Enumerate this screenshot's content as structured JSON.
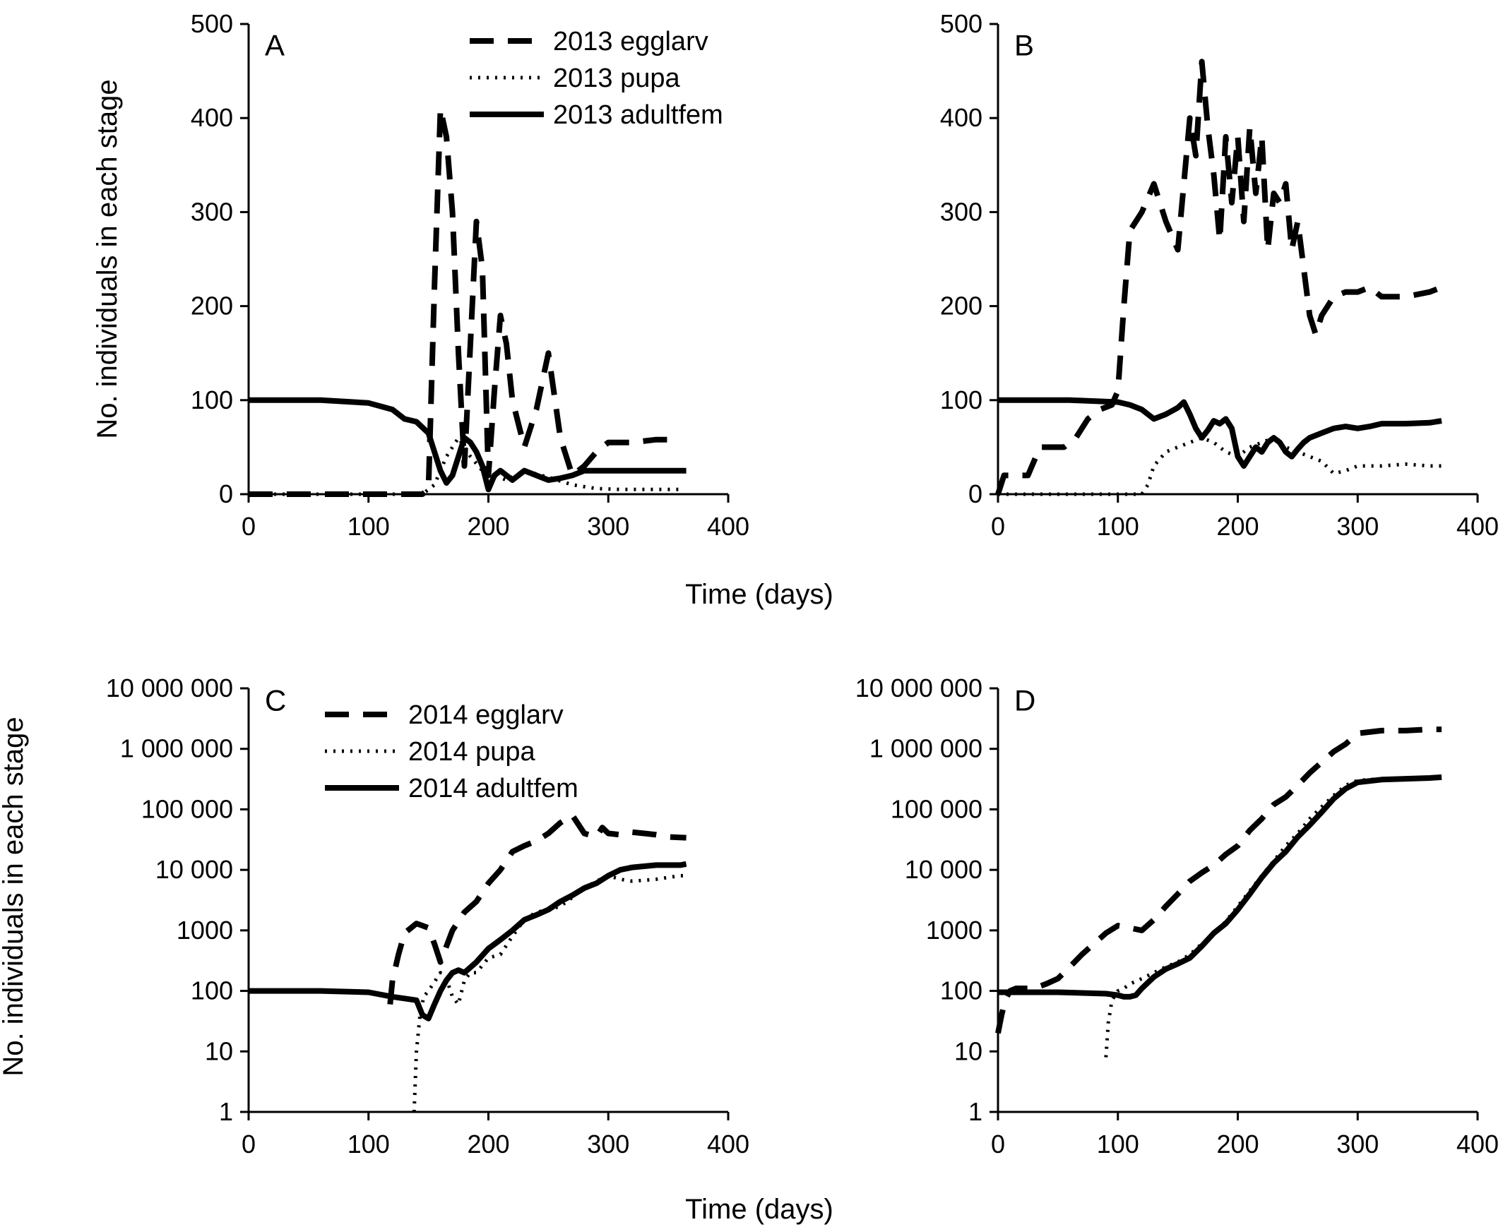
{
  "figure": {
    "xlabel_top": "Time (days)",
    "xlabel_bottom": "Time (days)",
    "ylabel_top": "No. individuals in each stage",
    "ylabel_bottom": "No. individuals in each stage"
  },
  "chart_data": [
    {
      "panel": "A",
      "type": "line",
      "xlim": [
        0,
        400
      ],
      "ylim": [
        0,
        500
      ],
      "xticks": [
        "0",
        "100",
        "200",
        "300",
        "400"
      ],
      "yticks": [
        "0",
        "100",
        "200",
        "300",
        "400",
        "500"
      ],
      "xtick_values": [
        0,
        100,
        200,
        300,
        400
      ],
      "ytick_values": [
        0,
        100,
        200,
        300,
        400,
        500
      ],
      "ylog": false,
      "legend": "top-center",
      "series": [
        {
          "name": "2013 egglarv",
          "style": "dashed",
          "x": [
            0,
            145,
            150,
            155,
            160,
            165,
            170,
            175,
            180,
            185,
            190,
            195,
            200,
            205,
            210,
            215,
            220,
            230,
            240,
            250,
            260,
            270,
            280,
            290,
            300,
            320,
            340,
            350,
            360
          ],
          "y": [
            0,
            0,
            5,
            220,
            410,
            380,
            300,
            150,
            30,
            160,
            290,
            240,
            20,
            110,
            190,
            160,
            100,
            50,
            90,
            150,
            60,
            20,
            30,
            45,
            55,
            55,
            58,
            58,
            60
          ]
        },
        {
          "name": "2013 pupa",
          "style": "dotted",
          "x": [
            0,
            145,
            155,
            165,
            175,
            185,
            195,
            205,
            215,
            230,
            250,
            270,
            290,
            310,
            330,
            350,
            360
          ],
          "y": [
            0,
            0,
            10,
            40,
            60,
            40,
            25,
            20,
            15,
            25,
            18,
            10,
            6,
            5,
            5,
            5,
            5
          ]
        },
        {
          "name": "2013 adultfem",
          "style": "solid",
          "x": [
            0,
            60,
            100,
            120,
            130,
            140,
            150,
            160,
            165,
            170,
            175,
            180,
            185,
            190,
            195,
            200,
            205,
            210,
            220,
            230,
            240,
            250,
            260,
            270,
            280,
            300,
            330,
            365
          ],
          "y": [
            100,
            100,
            97,
            90,
            80,
            77,
            65,
            25,
            12,
            20,
            40,
            60,
            55,
            45,
            30,
            5,
            20,
            25,
            15,
            25,
            20,
            15,
            17,
            20,
            25,
            25,
            25,
            25
          ]
        }
      ]
    },
    {
      "panel": "B",
      "type": "line",
      "xlim": [
        0,
        400
      ],
      "ylim": [
        0,
        500
      ],
      "xticks": [
        "0",
        "100",
        "200",
        "300",
        "400"
      ],
      "yticks": [
        "0",
        "100",
        "200",
        "300",
        "400",
        "500"
      ],
      "xtick_values": [
        0,
        100,
        200,
        300,
        400
      ],
      "ytick_values": [
        0,
        100,
        200,
        300,
        400,
        500
      ],
      "ylog": false,
      "series": [
        {
          "name": "2013 egglarv",
          "style": "dashed",
          "x": [
            0,
            5,
            25,
            35,
            45,
            55,
            65,
            75,
            85,
            95,
            100,
            105,
            110,
            115,
            120,
            130,
            140,
            150,
            155,
            160,
            165,
            170,
            175,
            180,
            185,
            190,
            195,
            200,
            205,
            210,
            215,
            220,
            225,
            230,
            235,
            240,
            245,
            250,
            255,
            260,
            265,
            270,
            275,
            280,
            290,
            300,
            310,
            320,
            340,
            360,
            370
          ],
          "y": [
            0,
            20,
            20,
            50,
            50,
            50,
            60,
            80,
            90,
            95,
            110,
            200,
            280,
            290,
            300,
            330,
            290,
            260,
            330,
            400,
            360,
            460,
            390,
            340,
            270,
            380,
            310,
            380,
            290,
            390,
            320,
            380,
            260,
            320,
            310,
            330,
            260,
            290,
            240,
            190,
            170,
            190,
            200,
            210,
            215,
            215,
            220,
            210,
            210,
            215,
            220
          ]
        },
        {
          "name": "2013 pupa",
          "style": "dotted",
          "x": [
            0,
            120,
            125,
            130,
            140,
            150,
            160,
            170,
            180,
            190,
            200,
            210,
            220,
            230,
            240,
            250,
            260,
            270,
            280,
            290,
            300,
            320,
            340,
            360,
            370
          ],
          "y": [
            0,
            0,
            10,
            30,
            45,
            50,
            55,
            60,
            55,
            45,
            40,
            50,
            55,
            60,
            50,
            45,
            40,
            35,
            22,
            25,
            30,
            30,
            32,
            30,
            30
          ]
        },
        {
          "name": "2013 adultfem",
          "style": "solid",
          "x": [
            0,
            60,
            100,
            110,
            120,
            130,
            140,
            150,
            155,
            160,
            165,
            170,
            175,
            180,
            185,
            190,
            195,
            200,
            205,
            210,
            215,
            220,
            225,
            230,
            235,
            240,
            245,
            250,
            255,
            260,
            270,
            280,
            290,
            300,
            310,
            320,
            340,
            360,
            370
          ],
          "y": [
            100,
            100,
            98,
            95,
            90,
            80,
            85,
            92,
            98,
            85,
            70,
            60,
            68,
            78,
            75,
            80,
            70,
            40,
            30,
            40,
            50,
            45,
            55,
            60,
            55,
            45,
            40,
            48,
            55,
            60,
            65,
            70,
            72,
            70,
            72,
            75,
            75,
            76,
            78
          ]
        }
      ]
    },
    {
      "panel": "C",
      "type": "line",
      "xlim": [
        0,
        400
      ],
      "ylim": [
        1,
        10000000
      ],
      "xticks": [
        "0",
        "100",
        "200",
        "300",
        "400"
      ],
      "yticks": [
        "1",
        "10",
        "100",
        "1000",
        "10 000",
        "100 000",
        "1 000 000",
        "10 000 000"
      ],
      "xtick_values": [
        0,
        100,
        200,
        300,
        400
      ],
      "ytick_values": [
        1,
        10,
        100,
        1000,
        10000,
        100000,
        1000000,
        10000000
      ],
      "ylog": true,
      "legend": "top-left",
      "series": [
        {
          "name": "2014 egglarv",
          "style": "dashed",
          "x": [
            118,
            120,
            125,
            130,
            140,
            145,
            150,
            155,
            160,
            170,
            180,
            190,
            200,
            210,
            220,
            230,
            240,
            250,
            260,
            270,
            280,
            290,
            295,
            300,
            310,
            320,
            330,
            340,
            350,
            365
          ],
          "y": [
            60,
            150,
            400,
            900,
            1300,
            1200,
            1100,
            600,
            300,
            1000,
            2000,
            3000,
            6000,
            10000,
            20000,
            25000,
            30000,
            40000,
            60000,
            80000,
            40000,
            35000,
            50000,
            40000,
            38000,
            42000,
            40000,
            38000,
            35000,
            34000
          ]
        },
        {
          "name": "2014 pupa",
          "style": "dotted",
          "x": [
            138,
            140,
            143,
            146,
            150,
            155,
            160,
            165,
            170,
            175,
            180,
            185,
            190,
            200,
            210,
            220,
            230,
            240,
            250,
            260,
            270,
            280,
            290,
            300,
            310,
            320,
            340,
            360,
            365
          ],
          "y": [
            1,
            10,
            40,
            80,
            100,
            140,
            200,
            160,
            80,
            60,
            150,
            200,
            200,
            350,
            400,
            800,
            1500,
            2000,
            2200,
            2500,
            3500,
            5000,
            6500,
            8000,
            7000,
            6500,
            7000,
            8000,
            8000
          ]
        },
        {
          "name": "2014 adultfem",
          "style": "solid",
          "x": [
            0,
            60,
            100,
            120,
            130,
            140,
            145,
            150,
            155,
            160,
            165,
            170,
            175,
            180,
            190,
            200,
            210,
            220,
            230,
            240,
            250,
            260,
            270,
            280,
            290,
            300,
            310,
            320,
            340,
            360,
            365
          ],
          "y": [
            100,
            100,
            95,
            80,
            75,
            70,
            40,
            35,
            60,
            100,
            150,
            200,
            220,
            200,
            300,
            500,
            700,
            1000,
            1500,
            1800,
            2200,
            3000,
            3800,
            5000,
            6000,
            8000,
            10000,
            11000,
            12000,
            12000,
            12500
          ]
        }
      ]
    },
    {
      "panel": "D",
      "type": "line",
      "xlim": [
        0,
        400
      ],
      "ylim": [
        1,
        10000000
      ],
      "xticks": [
        "0",
        "100",
        "200",
        "300",
        "400"
      ],
      "yticks": [
        "1",
        "10",
        "100",
        "1000",
        "10 000",
        "100 000",
        "1 000 000",
        "10 000 000"
      ],
      "xtick_values": [
        0,
        100,
        200,
        300,
        400
      ],
      "ytick_values": [
        1,
        10,
        100,
        1000,
        10000,
        100000,
        1000000,
        10000000
      ],
      "ylog": true,
      "series": [
        {
          "name": "2014 egglarv",
          "style": "dashed",
          "x": [
            0,
            3,
            6,
            10,
            15,
            20,
            30,
            40,
            50,
            60,
            70,
            80,
            90,
            100,
            110,
            120,
            130,
            140,
            150,
            160,
            170,
            180,
            190,
            200,
            210,
            220,
            230,
            240,
            250,
            260,
            270,
            280,
            290,
            300,
            320,
            340,
            360,
            370
          ],
          "y": [
            20,
            40,
            70,
            100,
            110,
            110,
            110,
            130,
            160,
            250,
            400,
            600,
            900,
            1200,
            1100,
            1000,
            1500,
            2500,
            4000,
            6500,
            9000,
            12000,
            18000,
            25000,
            45000,
            70000,
            120000,
            160000,
            250000,
            400000,
            600000,
            900000,
            1200000,
            1800000,
            2000000,
            2000000,
            2100000,
            2100000
          ]
        },
        {
          "name": "2014 pupa",
          "style": "dotted",
          "x": [
            90,
            92,
            95,
            100,
            105,
            110,
            120,
            130,
            140,
            150,
            160,
            170,
            180,
            190,
            200,
            210,
            220,
            230,
            240,
            250,
            260,
            270,
            280,
            290,
            300,
            320,
            340,
            360,
            370
          ],
          "y": [
            8,
            30,
            70,
            100,
            110,
            130,
            160,
            200,
            250,
            300,
            400,
            600,
            900,
            1400,
            2500,
            4500,
            8000,
            14000,
            25000,
            40000,
            70000,
            110000,
            170000,
            250000,
            300000,
            320000,
            330000,
            340000,
            340000
          ]
        },
        {
          "name": "2014 adultfem",
          "style": "solid",
          "x": [
            0,
            50,
            90,
            100,
            105,
            110,
            115,
            120,
            130,
            140,
            150,
            160,
            170,
            180,
            190,
            200,
            210,
            220,
            230,
            240,
            250,
            260,
            270,
            280,
            290,
            300,
            320,
            340,
            360,
            370
          ],
          "y": [
            95,
            95,
            90,
            85,
            80,
            80,
            85,
            110,
            170,
            230,
            280,
            350,
            550,
            900,
            1300,
            2200,
            4000,
            7500,
            13000,
            20000,
            35000,
            55000,
            90000,
            150000,
            220000,
            280000,
            310000,
            320000,
            330000,
            340000
          ]
        }
      ]
    }
  ]
}
